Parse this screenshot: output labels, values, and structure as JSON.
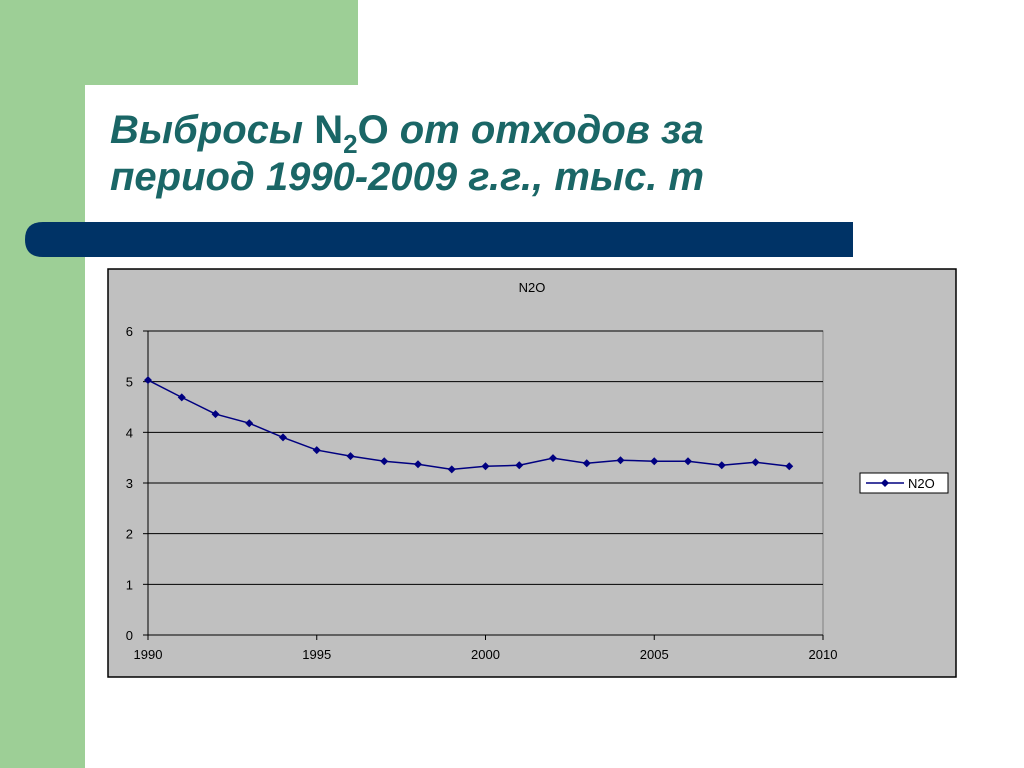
{
  "title_parts": [
    "Выбросы ",
    "N",
    "2",
    "O",
    " от отходов за",
    "период 1990-2009 г.г., тыс. т"
  ],
  "chart_data": {
    "type": "line",
    "title": "N2O",
    "x": [
      1990,
      1991,
      1992,
      1993,
      1994,
      1995,
      1996,
      1997,
      1998,
      1999,
      2000,
      2001,
      2002,
      2003,
      2004,
      2005,
      2006,
      2007,
      2008,
      2009
    ],
    "series": [
      {
        "name": "N2O",
        "color": "#000080",
        "values": [
          5.03,
          4.69,
          4.36,
          4.18,
          3.9,
          3.65,
          3.53,
          3.43,
          3.37,
          3.27,
          3.33,
          3.35,
          3.49,
          3.39,
          3.45,
          3.43,
          3.43,
          3.35,
          3.41,
          3.33
        ]
      }
    ],
    "xlim": [
      1990,
      2010
    ],
    "xticks": [
      1990,
      1995,
      2000,
      2005,
      2010
    ],
    "ylim": [
      0,
      6
    ],
    "yticks": [
      0,
      1,
      2,
      3,
      4,
      5,
      6
    ],
    "grid": true,
    "legend": "right"
  }
}
